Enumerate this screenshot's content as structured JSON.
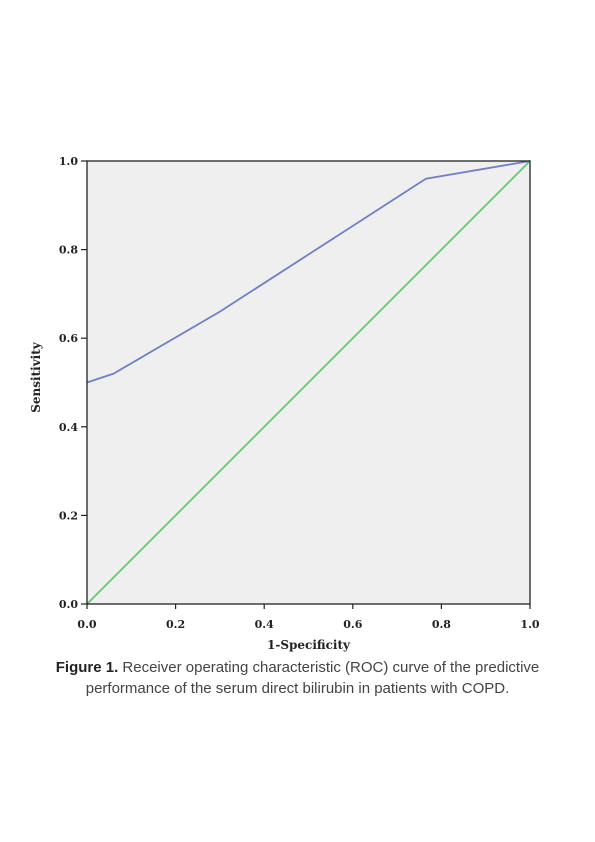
{
  "chart_data": {
    "type": "line",
    "xlabel": "1-Specificity",
    "ylabel": "Sensitivity",
    "xlim": [
      0,
      1
    ],
    "ylim": [
      0,
      1
    ],
    "x_ticks": [
      "0.0",
      "0.2",
      "0.4",
      "0.6",
      "0.8",
      "1.0"
    ],
    "y_ticks": [
      "0.0",
      "0.2",
      "0.4",
      "0.6",
      "0.8",
      "1.0"
    ],
    "grid": false,
    "legend": "none",
    "background": "#efefef",
    "series": [
      {
        "role": "roc-curve",
        "color": "#6f80c4",
        "points": [
          [
            0.0,
            0.5
          ],
          [
            0.06,
            0.52
          ],
          [
            0.3,
            0.66
          ],
          [
            0.765,
            0.96
          ],
          [
            1.0,
            1.0
          ]
        ]
      },
      {
        "role": "reference-line",
        "color": "#5fcb6b",
        "points": [
          [
            0.0,
            0.0
          ],
          [
            1.0,
            1.0
          ]
        ]
      }
    ]
  },
  "caption": {
    "label": "Figure 1.",
    "text": " Receiver operating characteristic (ROC) curve of the predictive performance of the serum direct bilirubin in patients with COPD."
  }
}
